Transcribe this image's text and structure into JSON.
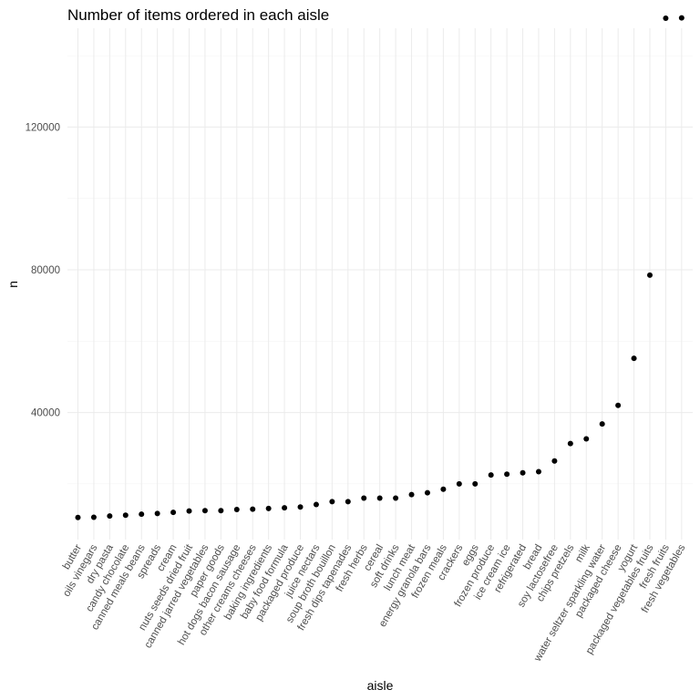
{
  "chart_data": {
    "type": "scatter",
    "title": "Number of items ordered in each aisle",
    "xlabel": "aisle",
    "ylabel": "n",
    "yticks": [
      40000,
      80000,
      120000
    ],
    "ylim": [
      9000,
      152000
    ],
    "grid": true,
    "categories": [
      "butter",
      "oils vinegars",
      "dry pasta",
      "candy chocolate",
      "canned meals beans",
      "spreads",
      "cream",
      "nuts seeds dried fruit",
      "canned jarred vegetables",
      "paper goods",
      "hot dogs bacon sausage",
      "other creams cheeses",
      "baking ingredients",
      "baby food formula",
      "packaged produce",
      "juice nectars",
      "soup broth bouillon",
      "fresh dips tapenades",
      "fresh herbs",
      "cereal",
      "soft drinks",
      "lunch meat",
      "energy granola bars",
      "frozen meals",
      "crackers",
      "eggs",
      "frozen produce",
      "ice cream ice",
      "refrigerated",
      "bread",
      "soy lactosefree",
      "chips pretzels",
      "milk",
      "water seltzer sparkling water",
      "packaged cheese",
      "yogurt",
      "packaged vegetables fruits",
      "fresh fruits",
      "fresh vegetables"
    ],
    "values": [
      10575,
      10640,
      11000,
      11200,
      11500,
      11700,
      12000,
      12400,
      12500,
      12500,
      12800,
      12900,
      13100,
      13300,
      13500,
      14200,
      15000,
      15000,
      16000,
      16000,
      16000,
      17000,
      17500,
      18500,
      20000,
      20000,
      22500,
      22700,
      23100,
      23400,
      26400,
      31300,
      32600,
      36800,
      42000,
      55200,
      78500,
      150500,
      150600
    ]
  }
}
